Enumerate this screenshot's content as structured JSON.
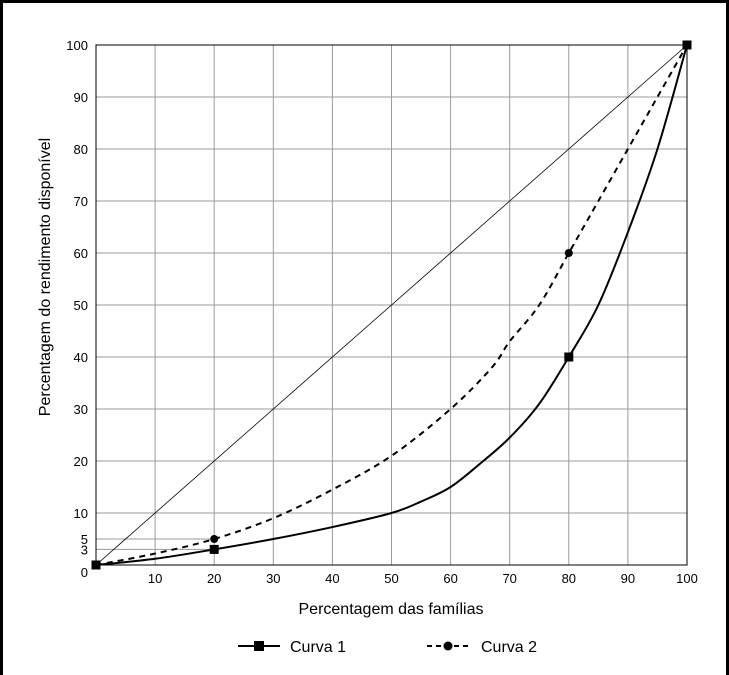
{
  "chart_data": {
    "type": "line",
    "xlabel": "Percentagem das famílias",
    "ylabel": "Percentagem do rendimento disponível",
    "xlim": [
      0,
      100
    ],
    "ylim": [
      0,
      100
    ],
    "x_ticks": [
      10,
      20,
      30,
      40,
      50,
      60,
      70,
      80,
      90,
      100
    ],
    "y_ticks": [
      0,
      3,
      5,
      10,
      20,
      30,
      40,
      50,
      60,
      70,
      80,
      90,
      100
    ],
    "grid": true,
    "legend_position": "bottom",
    "reference_line": [
      [
        0,
        0
      ],
      [
        100,
        100
      ]
    ],
    "series": [
      {
        "name": "Curva 1",
        "style": "solid",
        "marker": "square",
        "color": "#000000",
        "curve": [
          [
            0,
            0
          ],
          [
            10,
            1.2
          ],
          [
            20,
            3
          ],
          [
            30,
            5
          ],
          [
            40,
            7.3
          ],
          [
            50,
            10
          ],
          [
            55,
            12.2
          ],
          [
            60,
            15
          ],
          [
            65,
            19.5
          ],
          [
            70,
            24.5
          ],
          [
            75,
            31
          ],
          [
            80,
            40
          ],
          [
            85,
            50
          ],
          [
            90,
            64
          ],
          [
            95,
            80
          ],
          [
            100,
            100
          ]
        ],
        "markers": [
          [
            0,
            0
          ],
          [
            20,
            3
          ],
          [
            80,
            40
          ],
          [
            100,
            100
          ]
        ]
      },
      {
        "name": "Curva 2",
        "style": "dashed",
        "marker": "circle",
        "color": "#000000",
        "curve": [
          [
            0,
            0
          ],
          [
            10,
            2.2
          ],
          [
            20,
            5
          ],
          [
            30,
            9
          ],
          [
            40,
            14.5
          ],
          [
            50,
            21
          ],
          [
            60,
            30
          ],
          [
            67,
            38
          ],
          [
            70,
            43
          ],
          [
            75,
            50
          ],
          [
            80,
            60
          ],
          [
            85,
            70
          ],
          [
            90,
            80
          ],
          [
            95,
            90
          ],
          [
            100,
            100
          ]
        ],
        "markers": [
          [
            0,
            0
          ],
          [
            20,
            5
          ],
          [
            80,
            60
          ],
          [
            100,
            100
          ]
        ]
      }
    ],
    "guide_lines": [
      3,
      5
    ]
  }
}
